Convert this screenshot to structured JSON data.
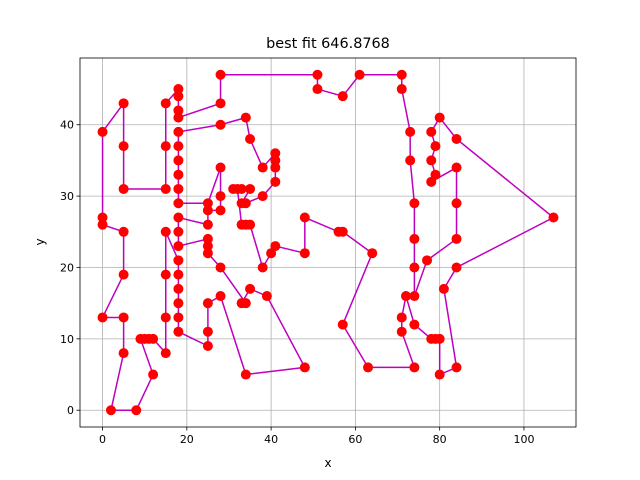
{
  "chart_data": {
    "type": "line",
    "title": "best fit 646.8768",
    "xlabel": "x",
    "ylabel": "y",
    "x": [
      0,
      5,
      5,
      5,
      15,
      15,
      15,
      18,
      18,
      18,
      18,
      28,
      28,
      51,
      51,
      57,
      61,
      71,
      71,
      73,
      73,
      74,
      74,
      74,
      74,
      77,
      84,
      84,
      84,
      78,
      79,
      78,
      79,
      78,
      80,
      84,
      107,
      84,
      81,
      84,
      80,
      80,
      79,
      78,
      74,
      72,
      71,
      71,
      74,
      63,
      57,
      64,
      57,
      56,
      48,
      48,
      41,
      40,
      38,
      35,
      34,
      33,
      32,
      31,
      33,
      35,
      33,
      34,
      38,
      41,
      41,
      41,
      41,
      38,
      35,
      34,
      28,
      18,
      18,
      18,
      18,
      18,
      18,
      25,
      28,
      28,
      28,
      25,
      25,
      18,
      18,
      18,
      25,
      25,
      25,
      28,
      34,
      33,
      35,
      39,
      48,
      34,
      28,
      25,
      25,
      25,
      18,
      18,
      18,
      18,
      18,
      18,
      15,
      15,
      15,
      15,
      12,
      11,
      10,
      9,
      12,
      8,
      2,
      5,
      5,
      0,
      5,
      5,
      0,
      0
    ],
    "values": [
      39,
      43,
      37,
      31,
      31,
      37,
      43,
      45,
      44,
      42,
      41,
      43,
      47,
      47,
      45,
      44,
      47,
      47,
      45,
      39,
      35,
      29,
      24,
      20,
      16,
      21,
      24,
      29,
      34,
      32,
      33,
      35,
      37,
      39,
      41,
      38,
      27,
      20,
      17,
      6,
      5,
      10,
      10,
      10,
      12,
      16,
      13,
      11,
      6,
      6,
      12,
      22,
      25,
      25,
      27,
      22,
      23,
      22,
      20,
      26,
      26,
      26,
      31,
      31,
      31,
      31,
      29,
      29,
      30,
      32,
      34,
      35,
      36,
      34,
      38,
      41,
      40,
      39,
      37,
      35,
      33,
      31,
      29,
      29,
      34,
      30,
      28,
      28,
      26,
      27,
      25,
      23,
      24,
      23,
      22,
      20,
      15,
      15,
      17,
      16,
      6,
      5,
      16,
      15,
      11,
      9,
      11,
      13,
      15,
      17,
      19,
      21,
      25,
      19,
      13,
      8,
      10,
      10,
      10,
      10,
      5,
      0,
      0,
      8,
      13,
      13,
      19,
      25,
      26,
      27
    ],
    "color": "#bf00bf",
    "marker_color": "#ff0000",
    "xlim": [
      -5.35,
      112.35
    ],
    "ylim": [
      -2.35,
      49.35
    ],
    "xticks": [
      0,
      20,
      40,
      60,
      80,
      100
    ],
    "yticks": [
      0,
      10,
      20,
      30,
      40
    ],
    "grid": true,
    "closed": true
  }
}
